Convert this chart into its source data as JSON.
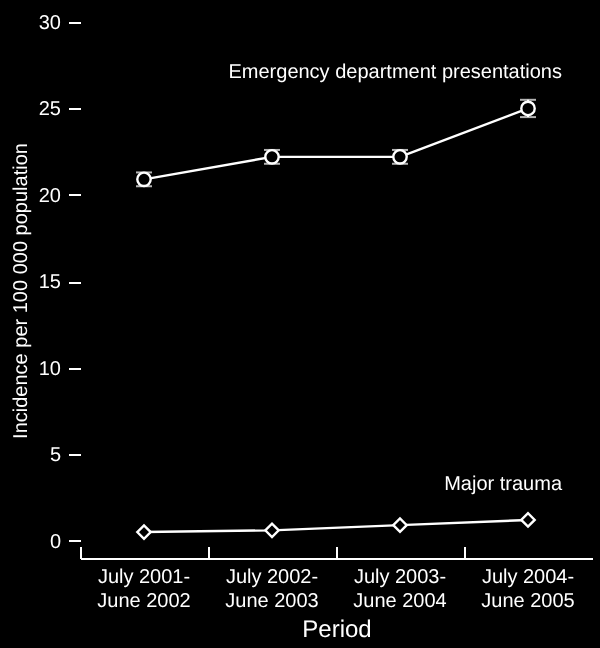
{
  "chart_data": {
    "type": "line",
    "xlabel": "Period",
    "ylabel": "Incidence per 100 000 population",
    "categories": [
      "July 2001-\nJune 2002",
      "July 2002-\nJune 2003",
      "July 2003-\nJune 2004",
      "July 2004-\nJune 2005"
    ],
    "series": [
      {
        "name": "Emergency department presentations",
        "color": "#ffffff",
        "marker": "circle",
        "values": [
          20.9,
          22.2,
          22.2,
          25.0
        ],
        "errors": [
          0.4,
          0.4,
          0.4,
          0.5
        ]
      },
      {
        "name": "Major trauma",
        "color": "#ffffff",
        "marker": "diamond",
        "values": [
          0.5,
          0.6,
          0.9,
          1.2
        ]
      }
    ],
    "ylim": [
      -1,
      30
    ],
    "yticks": [
      0,
      5,
      10,
      15,
      20,
      25,
      30
    ],
    "grid": false
  }
}
